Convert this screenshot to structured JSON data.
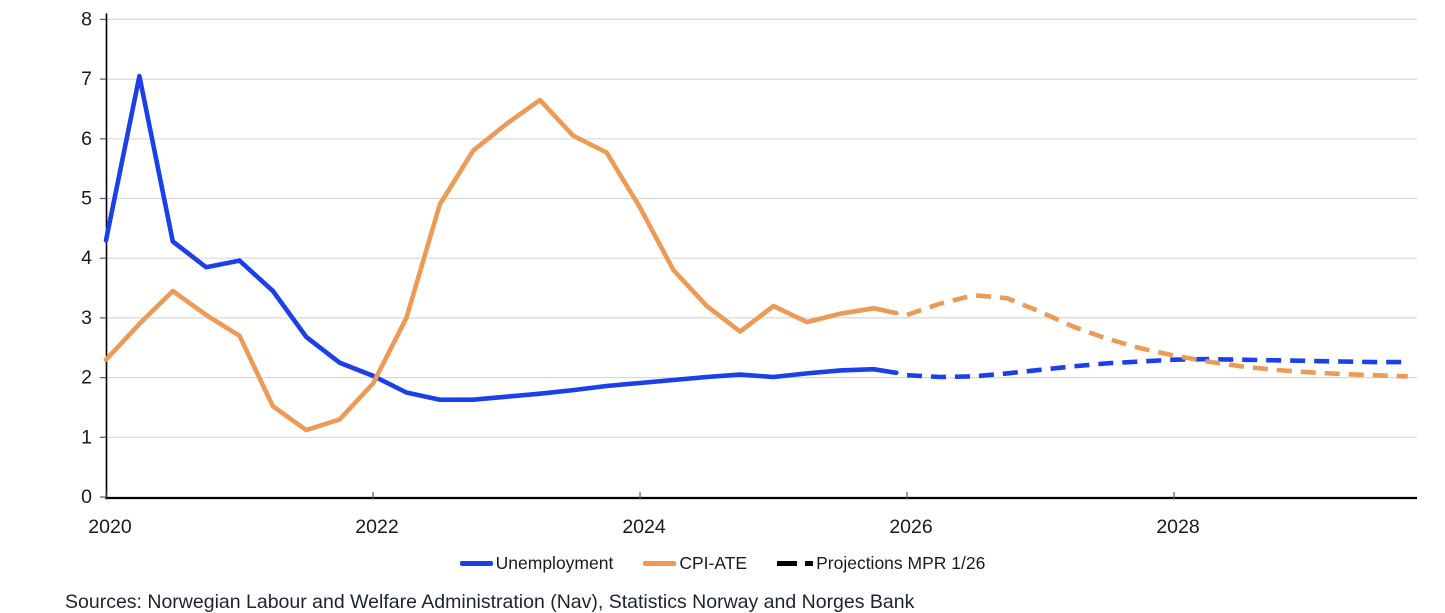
{
  "chart_data": {
    "type": "line",
    "title": "",
    "xlabel": "",
    "ylabel": "",
    "grid": true,
    "ylim": [
      0,
      8
    ],
    "yticks": [
      0,
      1,
      2,
      3,
      4,
      5,
      6,
      7,
      8
    ],
    "xlim": [
      2020,
      2029.82
    ],
    "xticks": [
      2020,
      2022,
      2024,
      2026,
      2028
    ],
    "legend_position": "bottom-center",
    "series": [
      {
        "name": "Unemployment",
        "style": "solid",
        "color": "#1C40E8",
        "x": [
          2020.0,
          2020.25,
          2020.5,
          2020.75,
          2021.0,
          2021.25,
          2021.5,
          2021.75,
          2022.0,
          2022.25,
          2022.5,
          2022.75,
          2023.0,
          2023.25,
          2023.5,
          2023.75,
          2024.0,
          2024.25,
          2024.5,
          2024.75,
          2025.0,
          2025.25,
          2025.5,
          2025.75,
          2025.92
        ],
        "y": [
          4.3,
          7.05,
          4.28,
          3.85,
          3.96,
          3.45,
          2.68,
          2.25,
          2.03,
          1.75,
          1.63,
          1.63,
          1.68,
          1.73,
          1.79,
          1.86,
          1.91,
          1.96,
          2.01,
          2.05,
          2.01,
          2.07,
          2.12,
          2.14,
          2.08
        ]
      },
      {
        "name": "CPI-ATE",
        "style": "solid",
        "color": "#EC9A55",
        "x": [
          2020.0,
          2020.25,
          2020.5,
          2020.75,
          2021.0,
          2021.25,
          2021.5,
          2021.75,
          2022.0,
          2022.25,
          2022.5,
          2022.75,
          2023.0,
          2023.25,
          2023.5,
          2023.75,
          2024.0,
          2024.25,
          2024.5,
          2024.75,
          2025.0,
          2025.25,
          2025.5,
          2025.75,
          2025.92
        ],
        "y": [
          2.3,
          2.9,
          3.45,
          3.05,
          2.7,
          1.52,
          1.12,
          1.3,
          1.9,
          3.0,
          4.9,
          5.8,
          6.25,
          6.65,
          6.05,
          5.77,
          4.85,
          3.8,
          3.2,
          2.77,
          3.2,
          2.93,
          3.07,
          3.16,
          3.08
        ]
      },
      {
        "name": "Unemployment projection MPR 1/26",
        "style": "dashed",
        "color": "#1C40E8",
        "x": [
          2026.0,
          2026.25,
          2026.5,
          2026.75,
          2027.0,
          2027.25,
          2027.5,
          2027.75,
          2028.0,
          2028.25,
          2028.5,
          2028.75,
          2029.0,
          2029.25,
          2029.5,
          2029.75
        ],
        "y": [
          2.04,
          2.01,
          2.02,
          2.07,
          2.13,
          2.19,
          2.24,
          2.27,
          2.3,
          2.31,
          2.3,
          2.29,
          2.28,
          2.27,
          2.26,
          2.26
        ]
      },
      {
        "name": "CPI-ATE projection MPR 1/26",
        "style": "dashed",
        "color": "#EC9A55",
        "x": [
          2026.0,
          2026.25,
          2026.5,
          2026.75,
          2027.0,
          2027.25,
          2027.5,
          2027.75,
          2028.0,
          2028.25,
          2028.5,
          2028.75,
          2029.0,
          2029.25,
          2029.5,
          2029.75
        ],
        "y": [
          3.05,
          3.24,
          3.38,
          3.33,
          3.1,
          2.85,
          2.65,
          2.49,
          2.37,
          2.27,
          2.19,
          2.13,
          2.09,
          2.06,
          2.04,
          2.02
        ]
      }
    ]
  },
  "legend": {
    "items": [
      {
        "label": "Unemployment",
        "swatch": "solid-line",
        "color": "#1C40E8"
      },
      {
        "label": "CPI-ATE",
        "swatch": "solid-line",
        "color": "#EC9A55"
      },
      {
        "label": "Projections MPR 1/26",
        "swatch": "dashed-line",
        "color": "#000000"
      }
    ]
  },
  "footer": {
    "sources": "Sources: Norwegian Labour and Welfare Administration (Nav), Statistics Norway and Norges Bank"
  },
  "colors": {
    "grid": "#D9D9D9",
    "axis": "#000000",
    "tick": "#595959",
    "tick_label": "#1a1a1a"
  }
}
